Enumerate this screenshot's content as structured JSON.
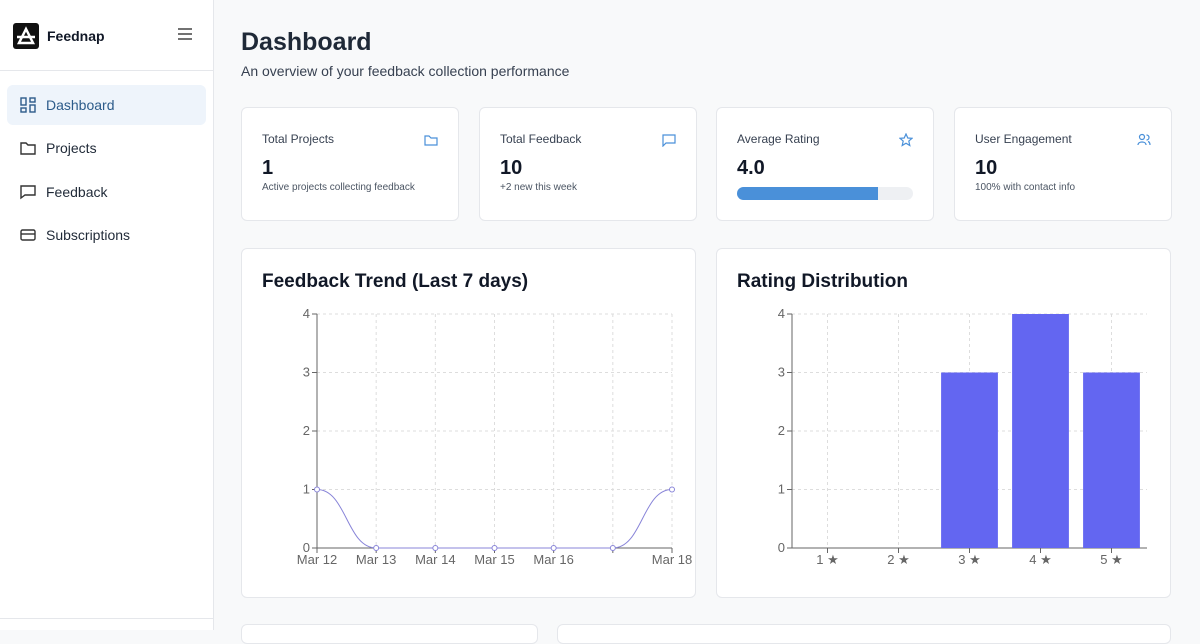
{
  "sidebar": {
    "brand": "Feednap",
    "nav": [
      "Dashboard",
      "Projects",
      "Feedback",
      "Subscriptions"
    ]
  },
  "header": {
    "title": "Dashboard",
    "subtitle": "An overview of your feedback collection performance"
  },
  "stats": [
    {
      "label": "Total Projects",
      "value": "1",
      "note": "Active projects collecting feedback"
    },
    {
      "label": "Total Feedback",
      "value": "10",
      "note": "+2 new this week"
    },
    {
      "label": "Average Rating",
      "value": "4.0"
    },
    {
      "label": "User Engagement",
      "value": "10",
      "note": "100% with contact info"
    }
  ],
  "chart_data": [
    {
      "type": "line",
      "title": "Feedback Trend (Last 7 days)",
      "categories": [
        "Mar 12",
        "Mar 13",
        "Mar 14",
        "Mar 15",
        "Mar 16",
        null,
        "Mar 18"
      ],
      "values": [
        1,
        0,
        0,
        0,
        0,
        0,
        1
      ],
      "color": "#8884d8",
      "ylim": [
        0,
        4
      ],
      "yticks": [
        0,
        1,
        2,
        3,
        4
      ],
      "grid": true
    },
    {
      "type": "bar",
      "title": "Rating Distribution",
      "categories": [
        "1 ★",
        "2 ★",
        "3 ★",
        "4 ★",
        "5 ★"
      ],
      "values": [
        0,
        0,
        3,
        4,
        3
      ],
      "color": "#6366f1",
      "ylim": [
        0,
        4
      ],
      "yticks": [
        0,
        1,
        2,
        3,
        4
      ],
      "grid": true
    }
  ]
}
